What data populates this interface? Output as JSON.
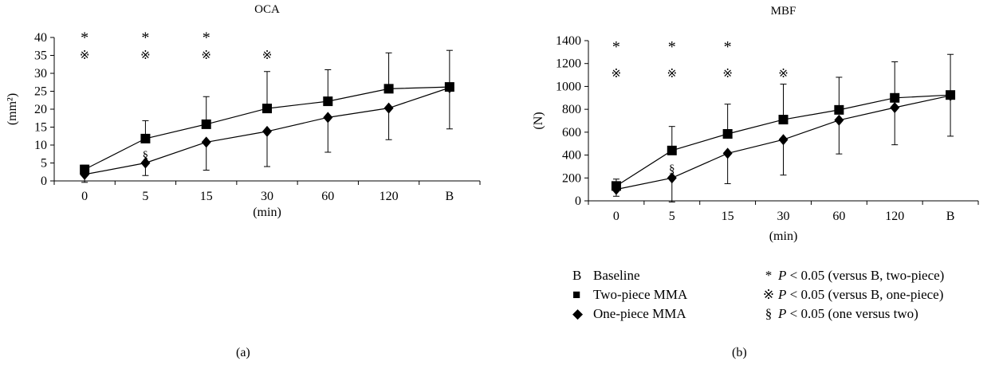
{
  "chart_data": [
    {
      "type": "line",
      "title": "OCA",
      "xlabel": "(min)",
      "ylabel": "(mm²)",
      "categories": [
        "0",
        "5",
        "15",
        "30",
        "60",
        "120",
        "B"
      ],
      "ylim": [
        0,
        40
      ],
      "yticks": [
        0,
        5,
        10,
        15,
        20,
        25,
        30,
        35,
        40
      ],
      "grid": false,
      "series": [
        {
          "name": "Two-piece MMA",
          "marker": "square",
          "values": [
            3.2,
            11.8,
            15.8,
            20.2,
            22.2,
            25.7,
            26.2
          ],
          "err_up": [
            1.2,
            5.0,
            7.7,
            10.3,
            8.8,
            10.0,
            10.2
          ],
          "err_down": [
            0,
            0,
            0,
            0,
            0,
            0,
            0
          ]
        },
        {
          "name": "One-piece MMA",
          "marker": "diamond",
          "values": [
            1.8,
            5.0,
            10.8,
            13.8,
            17.7,
            20.3,
            26.0
          ],
          "err_up": [
            0,
            0,
            0,
            0,
            0,
            0,
            0
          ],
          "err_down": [
            2.2,
            3.5,
            7.8,
            9.8,
            9.7,
            8.8,
            11.5
          ]
        }
      ],
      "annotations": [
        {
          "category": "0",
          "y": 41,
          "text": "*"
        },
        {
          "category": "5",
          "y": 41,
          "text": "*"
        },
        {
          "category": "15",
          "y": 41,
          "text": "*"
        },
        {
          "category": "0",
          "y": 35.3,
          "text": "※"
        },
        {
          "category": "5",
          "y": 35.3,
          "text": "※"
        },
        {
          "category": "15",
          "y": 35.3,
          "text": "※"
        },
        {
          "category": "30",
          "y": 35.3,
          "text": "※"
        },
        {
          "category": "5",
          "y": 7.5,
          "text": "§"
        }
      ],
      "panel_label": "(a)"
    },
    {
      "type": "line",
      "title": "MBF",
      "xlabel": "(min)",
      "ylabel": "(N)",
      "categories": [
        "0",
        "5",
        "15",
        "30",
        "60",
        "120",
        "B"
      ],
      "ylim": [
        0,
        1400
      ],
      "yticks": [
        0,
        200,
        400,
        600,
        800,
        1000,
        1200,
        1400
      ],
      "grid": false,
      "series": [
        {
          "name": "Two-piece MMA",
          "marker": "square",
          "values": [
            130,
            440,
            585,
            710,
            795,
            900,
            925
          ],
          "err_up": [
            60,
            210,
            260,
            310,
            285,
            315,
            355
          ],
          "err_down": [
            0,
            0,
            0,
            0,
            0,
            0,
            0
          ]
        },
        {
          "name": "One-piece MMA",
          "marker": "diamond",
          "values": [
            100,
            200,
            415,
            535,
            705,
            815,
            920
          ],
          "err_up": [
            0,
            0,
            0,
            0,
            0,
            0,
            0
          ],
          "err_down": [
            60,
            210,
            265,
            310,
            295,
            325,
            355
          ]
        }
      ],
      "annotations": [
        {
          "category": "0",
          "y": 1380,
          "text": "*"
        },
        {
          "category": "5",
          "y": 1380,
          "text": "*"
        },
        {
          "category": "15",
          "y": 1380,
          "text": "*"
        },
        {
          "category": "0",
          "y": 1120,
          "text": "※"
        },
        {
          "category": "5",
          "y": 1120,
          "text": "※"
        },
        {
          "category": "15",
          "y": 1120,
          "text": "※"
        },
        {
          "category": "30",
          "y": 1120,
          "text": "※"
        },
        {
          "category": "5",
          "y": 290,
          "text": "§"
        }
      ],
      "panel_label": "(b)"
    }
  ],
  "legend": {
    "items": [
      {
        "symbol": "B",
        "label": "Baseline"
      },
      {
        "symbol": "■",
        "label": "Two-piece MMA"
      },
      {
        "symbol": "◆",
        "label": "One-piece MMA"
      }
    ],
    "stats": [
      {
        "symbol": "*",
        "p": "P",
        "text": " < 0.05 (versus B, two-piece)"
      },
      {
        "symbol": "※",
        "p": "P",
        "text": " < 0.05 (versus B, one-piece)"
      },
      {
        "symbol": "§",
        "p": "P",
        "text": " < 0.05 (one versus two)"
      }
    ]
  }
}
